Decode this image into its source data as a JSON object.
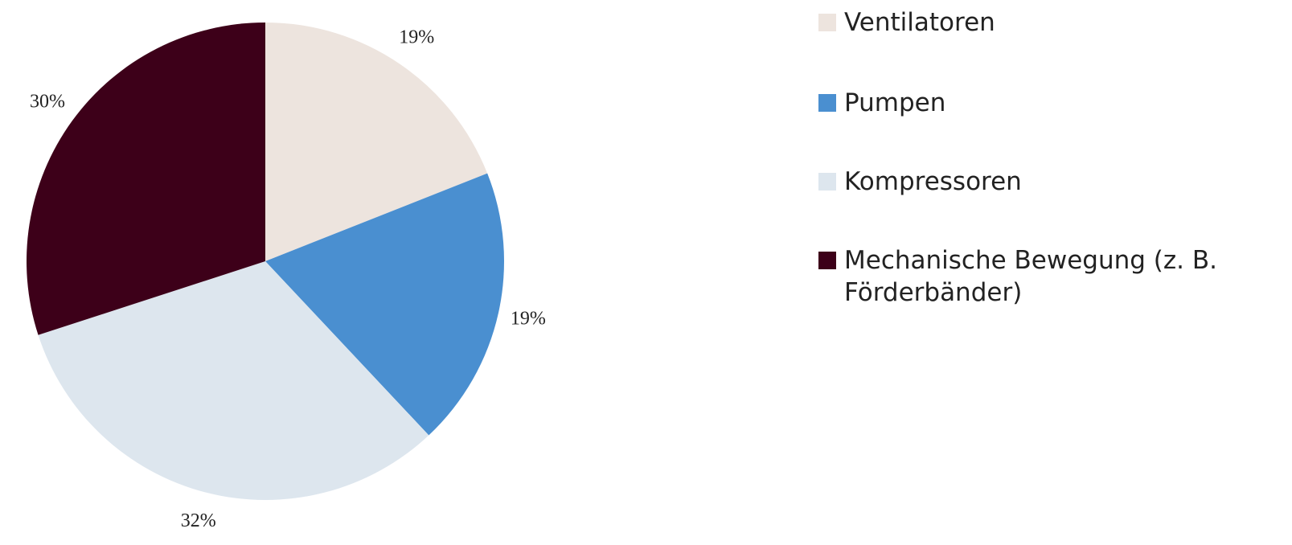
{
  "chart_data": {
    "type": "pie",
    "categories": [
      "Ventilatoren",
      "Pumpen",
      "Kompressoren",
      "Mechanische Bewegung (z. B. Förderbänder)"
    ],
    "values": [
      19,
      19,
      32,
      30
    ],
    "value_labels": [
      "19%",
      "19%",
      "32%",
      "30%"
    ],
    "colors": [
      "#ede4de",
      "#4a8fd0",
      "#dde6ee",
      "#3d0019"
    ],
    "legend": "right"
  }
}
